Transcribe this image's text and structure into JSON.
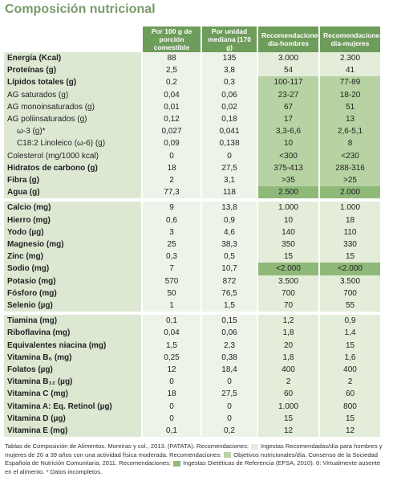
{
  "title": "Composición nutricional",
  "header": [
    "Por 100 g de porción comestible",
    "Por unidad mediana (170 g)",
    "Recomendaciones día-hombres",
    "Recomendaciones día-mujeres"
  ],
  "sections": [
    {
      "rows": [
        [
          "Energía (Kcal)",
          "88",
          "135",
          "3.000",
          "2.300"
        ],
        [
          "Proteínas (g)",
          "2,5",
          "3,8",
          "54",
          "41"
        ],
        [
          "Lípidos totales (g)",
          "0,2",
          "0,3",
          "100-117",
          "77-89"
        ],
        [
          "AG saturados (g)",
          "0,04",
          "0,06",
          "23-27",
          "18-20"
        ],
        [
          "AG monoinsaturados (g)",
          "0,01",
          "0,02",
          "67",
          "51"
        ],
        [
          "AG poliinsaturados (g)",
          "0,12",
          "0,18",
          "17",
          "13"
        ],
        [
          "ω-3 (g)*",
          "0,027",
          "0,041",
          "3,3-6,6",
          "2,6-5,1"
        ],
        [
          "C18:2 Linoleico (ω-6) (g)",
          "0,09",
          "0,138",
          "10",
          "8"
        ],
        [
          "Colesterol (mg/1000 kcal)",
          "0",
          "0",
          "<300",
          "<230"
        ],
        [
          "Hidratos de carbono (g)",
          "18",
          "27,5",
          "375-413",
          "288-316"
        ],
        [
          "Fibra (g)",
          "2",
          "3,1",
          ">35",
          ">25"
        ],
        [
          "Agua (g)",
          "77,3",
          "118",
          "2.500",
          "2.000"
        ]
      ]
    },
    {
      "rows": [
        [
          "Calcio (mg)",
          "9",
          "13,8",
          "1.000",
          "1.000"
        ],
        [
          "Hierro (mg)",
          "0,6",
          "0,9",
          "10",
          "18"
        ],
        [
          "Yodo (µg)",
          "3",
          "4,6",
          "140",
          "110"
        ],
        [
          "Magnesio (mg)",
          "25",
          "38,3",
          "350",
          "330"
        ],
        [
          "Zinc (mg)",
          "0,3",
          "0,5",
          "15",
          "15"
        ],
        [
          "Sodio (mg)",
          "7",
          "10,7",
          "<2.000",
          "<2.000"
        ],
        [
          "Potasio (mg)",
          "570",
          "872",
          "3.500",
          "3.500"
        ],
        [
          "Fósforo (mg)",
          "50",
          "76,5",
          "700",
          "700"
        ],
        [
          "Selenio (µg)",
          "1",
          "1,5",
          "70",
          "55"
        ]
      ]
    },
    {
      "rows": [
        [
          "Tiamina (mg)",
          "0,1",
          "0,15",
          "1,2",
          "0,9"
        ],
        [
          "Riboflavina (mg)",
          "0,04",
          "0,06",
          "1,8",
          "1,4"
        ],
        [
          "Equivalentes niacina (mg)",
          "1,5",
          "2,3",
          "20",
          "15"
        ],
        [
          "Vitamina B₆ (mg)",
          "0,25",
          "0,38",
          "1,8",
          "1,6"
        ],
        [
          "Folatos (µg)",
          "12",
          "18,4",
          "400",
          "400"
        ],
        [
          "Vitamina B₁₂ (µg)",
          "0",
          "0",
          "2",
          "2"
        ],
        [
          "Vitamina C (mg)",
          "18",
          "27,5",
          "60",
          "60"
        ],
        [
          "Vitamina A: Eq. Retinol (µg)",
          "0",
          "0",
          "1.000",
          "800"
        ],
        [
          "Vitamina D (µg)",
          "0",
          "0",
          "15",
          "15"
        ],
        [
          "Vitamina E (mg)",
          "0,1",
          "0,2",
          "12",
          "12"
        ]
      ]
    }
  ],
  "footnote": [
    "Tablas de Composición de Alimentos. Moreiras y col., 2013. (PATATA). Recomendaciones:",
    "Ingestas Recomendadas/día para hombres y mujeres de 20 a 39 años con una actividad física moderada. Recomendaciones:",
    "Objetivos nutricionales/día. Consenso de la Sociedad Española de Nutrición Comunitaria, 2011. Recomendaciones:",
    "Ingestas Dietéticas de Referencia (EFSA, 2010). 0: Virtualmente ausente en el alimento. * Datos incompletos."
  ]
}
